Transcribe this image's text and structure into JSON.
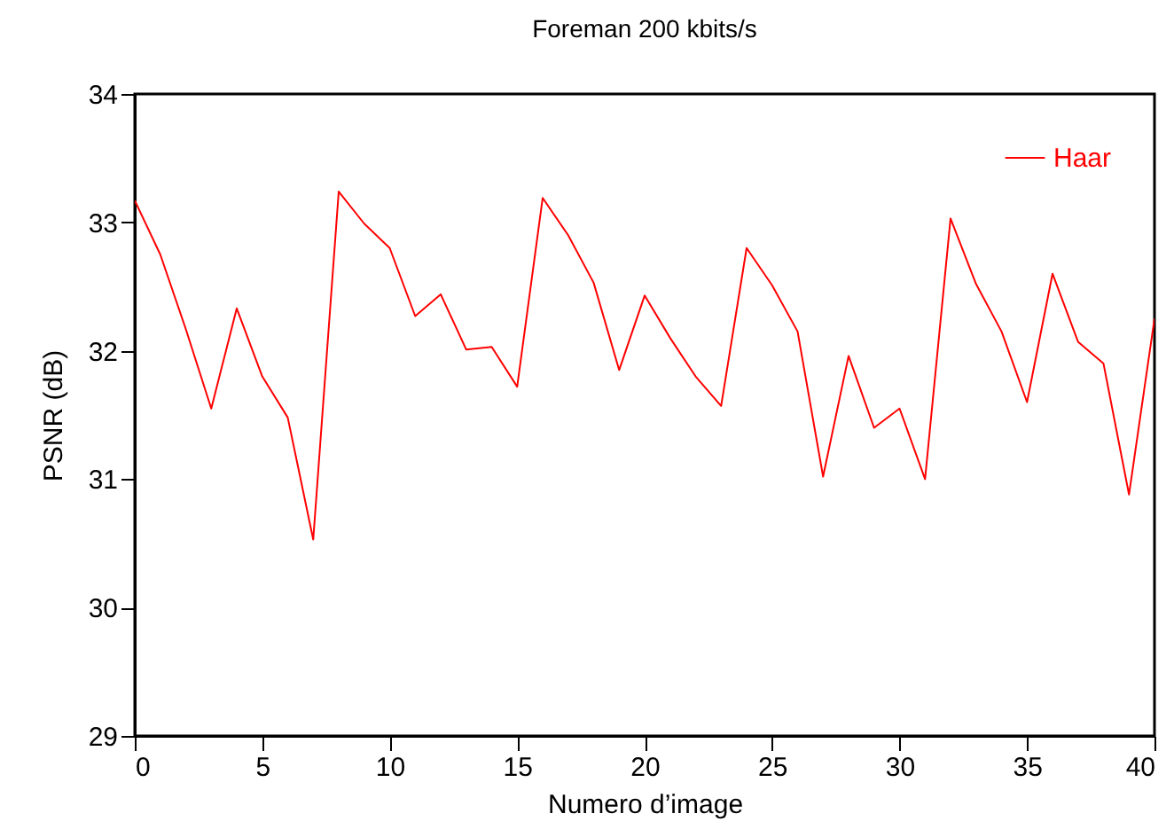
{
  "chart_data": {
    "type": "line",
    "title": "Foreman 200 kbits/s",
    "xlabel": "Numero d’image",
    "ylabel": "PSNR (dB)",
    "x": [
      0,
      1,
      2,
      3,
      4,
      5,
      6,
      7,
      8,
      9,
      10,
      11,
      12,
      13,
      14,
      15,
      16,
      17,
      18,
      19,
      20,
      21,
      22,
      23,
      24,
      25,
      26,
      27,
      28,
      29,
      30,
      31,
      32,
      33,
      34,
      35,
      36,
      37,
      38,
      39,
      40
    ],
    "series": [
      {
        "name": "Haar",
        "color": "#ff0000",
        "values": [
          33.17,
          32.75,
          32.17,
          31.55,
          32.33,
          31.8,
          31.48,
          30.53,
          33.24,
          32.99,
          32.8,
          32.27,
          32.44,
          32.01,
          32.03,
          31.72,
          33.19,
          32.9,
          32.53,
          31.85,
          32.43,
          32.1,
          31.8,
          31.57,
          32.8,
          32.51,
          32.15,
          31.02,
          31.96,
          31.4,
          31.55,
          31.0,
          33.03,
          32.52,
          32.15,
          31.6,
          32.6,
          32.07,
          31.9,
          30.88,
          32.25
        ]
      }
    ],
    "xlim": [
      0,
      40
    ],
    "xticks": [
      0,
      5,
      10,
      15,
      20,
      25,
      30,
      35,
      40
    ],
    "ylim": [
      29,
      34
    ],
    "yticks": [
      29,
      30,
      31,
      32,
      33,
      34
    ],
    "legend": "top right",
    "marker": "none",
    "line_style": "solid",
    "grid": false
  }
}
